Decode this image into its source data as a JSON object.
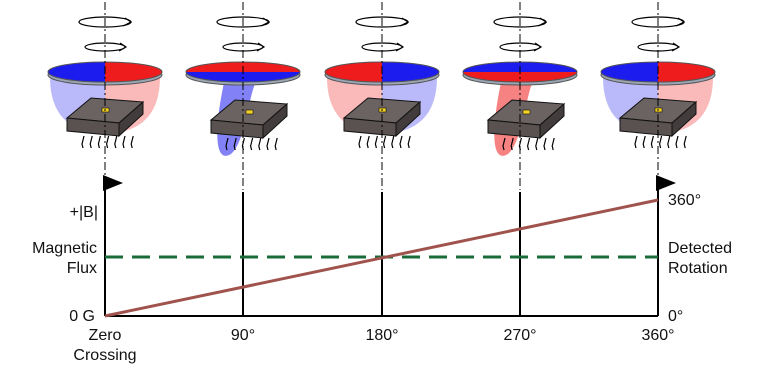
{
  "diagram": {
    "left_axis": {
      "top_label": "+|B|",
      "middle_label_line1": "Magnetic",
      "middle_label_line2": "Flux",
      "bottom_label": "0 G"
    },
    "right_axis": {
      "top_label": "360°",
      "middle_label_line1": "Detected",
      "middle_label_line2": "Rotation",
      "bottom_label": "0°"
    },
    "x_ticks": [
      {
        "line1": "Zero",
        "line2": "Crossing"
      },
      {
        "line1": "90°"
      },
      {
        "line1": "180°"
      },
      {
        "line1": "270°"
      },
      {
        "line1": "360°"
      }
    ],
    "magnet_stages": [
      {
        "rotation_deg": 0,
        "orientation": "vertical-split",
        "left_pole": "blue",
        "right_pole": "red"
      },
      {
        "rotation_deg": 90,
        "orientation": "horizontal-split",
        "top_pole": "red",
        "bottom_pole": "blue"
      },
      {
        "rotation_deg": 180,
        "orientation": "vertical-split",
        "left_pole": "red",
        "right_pole": "blue"
      },
      {
        "rotation_deg": 270,
        "orientation": "horizontal-split",
        "top_pole": "blue",
        "bottom_pole": "red"
      },
      {
        "rotation_deg": 360,
        "orientation": "vertical-split",
        "left_pole": "blue",
        "right_pole": "red"
      }
    ],
    "colors": {
      "north_red": "#ee1c1c",
      "south_blue": "#1c1cee",
      "flux_dashed": "#1a6b3a",
      "rotation_line": "#a0524d",
      "chip": "#5a5151"
    },
    "flux_level_fraction": 0.5,
    "rotation_line": {
      "from_deg": 0,
      "to_deg": 360
    }
  }
}
